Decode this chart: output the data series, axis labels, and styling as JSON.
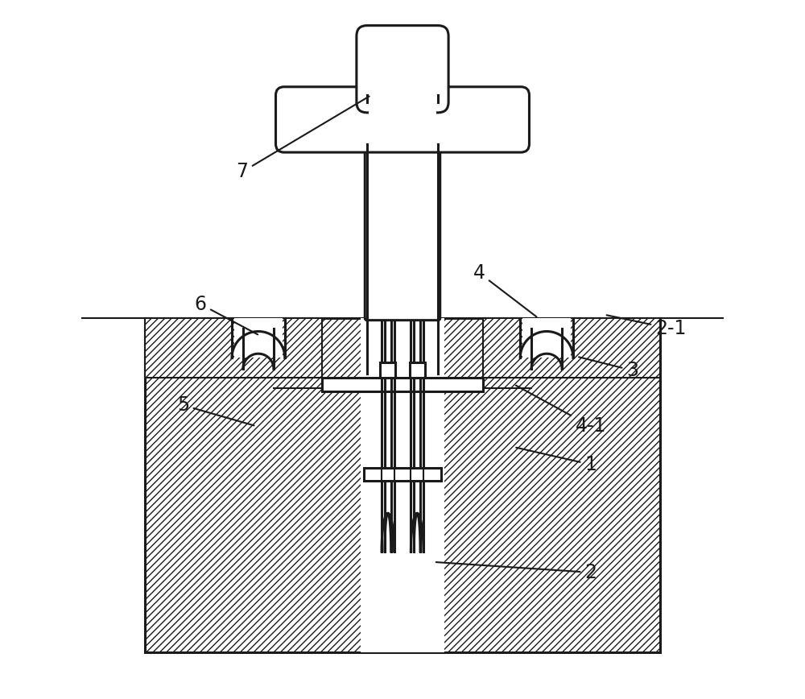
{
  "bg_color": "#ffffff",
  "line_color": "#1a1a1a",
  "lw": 2.2,
  "lw_thin": 1.5,
  "fig_width": 10.0,
  "fig_height": 8.68,
  "label_fontsize": 17
}
